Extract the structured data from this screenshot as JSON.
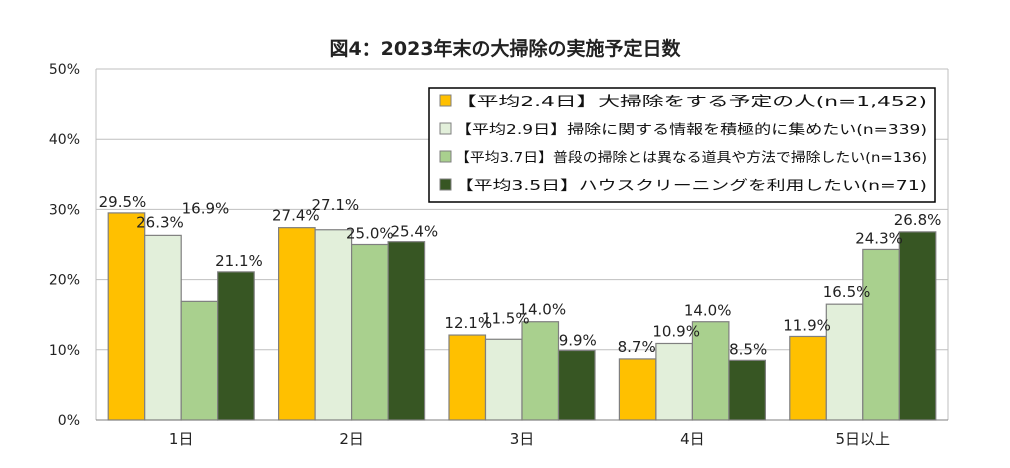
{
  "chart_data": {
    "type": "bar",
    "title": "図4：2023年末の大掃除の実施予定日数",
    "categories": [
      "1日",
      "2日",
      "3日",
      "4日",
      "5日以上"
    ],
    "ylim": [
      0,
      50
    ],
    "yticks": [
      "0%",
      "10%",
      "20%",
      "30%",
      "40%",
      "50%"
    ],
    "xlabel": "",
    "ylabel": "",
    "legend_position": "top-right",
    "series": [
      {
        "name": "【平均2.4日】大掃除をする予定の人(n=1,452)",
        "color": "#FFC000",
        "values": [
          29.5,
          27.4,
          12.1,
          8.7,
          11.9
        ],
        "labels": [
          "29.5%",
          "27.4%",
          "12.1%",
          "8.7%",
          "11.9%"
        ]
      },
      {
        "name": "【平均2.9日】掃除に関する情報を積極的に集めたい(n=339)",
        "color": "#E2EFDA",
        "values": [
          26.3,
          27.1,
          11.5,
          10.9,
          16.5
        ],
        "labels": [
          "26.3%",
          "27.1%",
          "11.5%",
          "10.9%",
          "16.5%"
        ]
      },
      {
        "name": "【平均3.7日】普段の掃除とは異なる道具や方法で掃除したい(n=136)",
        "color": "#A9D08E",
        "values": [
          16.9,
          25.0,
          14.0,
          14.0,
          24.3
        ],
        "labels": [
          "16.9%",
          "25.0%",
          "14.0%",
          "14.0%",
          "24.3%"
        ]
      },
      {
        "name": "【平均3.5日】ハウスクリーニングを利用したい(n=71)",
        "color": "#375623",
        "values": [
          21.1,
          25.4,
          9.9,
          8.5,
          26.8
        ],
        "labels": [
          "21.1%",
          "25.4%",
          "9.9%",
          "8.5%",
          "26.8%"
        ]
      }
    ]
  }
}
